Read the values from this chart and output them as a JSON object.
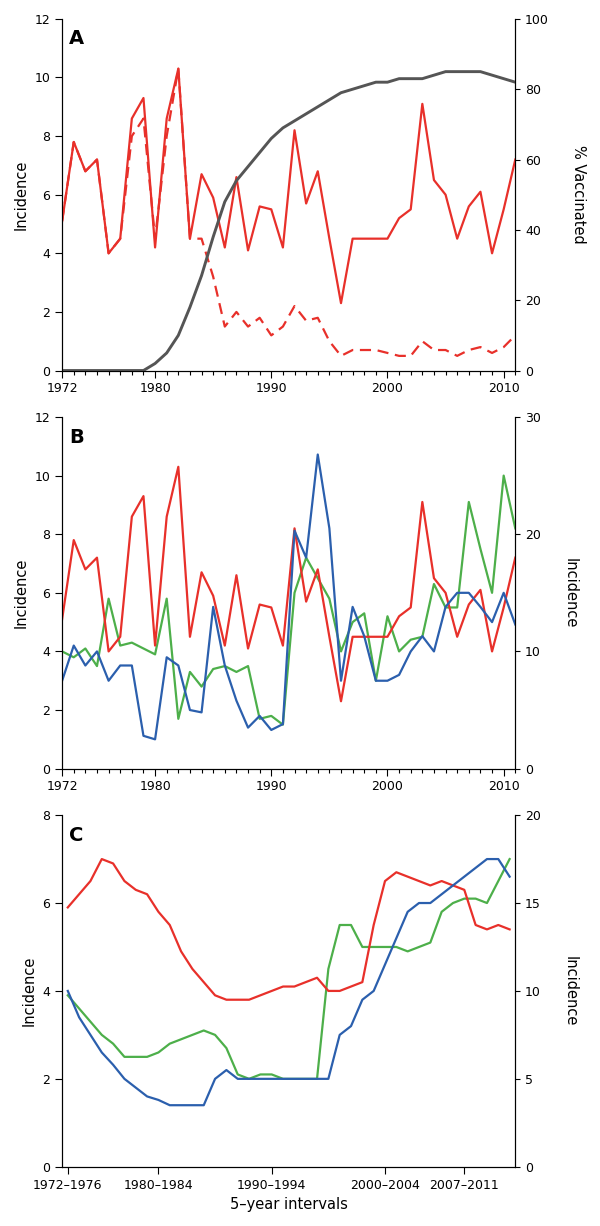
{
  "panel_A": {
    "years": [
      1972,
      1973,
      1974,
      1975,
      1976,
      1977,
      1978,
      1979,
      1980,
      1981,
      1982,
      1983,
      1984,
      1985,
      1986,
      1987,
      1988,
      1989,
      1990,
      1991,
      1992,
      1993,
      1994,
      1995,
      1996,
      1997,
      1998,
      1999,
      2000,
      2001,
      2002,
      2003,
      2004,
      2005,
      2006,
      2007,
      2008,
      2009,
      2010,
      2011
    ],
    "austria_total_solid": [
      5.1,
      7.8,
      6.8,
      7.2,
      4.0,
      4.5,
      8.6,
      9.3,
      4.2,
      8.6,
      10.3,
      4.5,
      6.7,
      5.9,
      4.2,
      6.6,
      4.1,
      5.6,
      5.5,
      4.2,
      8.2,
      5.7,
      6.8,
      4.5,
      2.3,
      4.5,
      4.5,
      4.5,
      4.5,
      5.2,
      5.5,
      9.1,
      6.5,
      6.0,
      4.5,
      5.6,
      6.1,
      4.0,
      5.5,
      7.2
    ],
    "austria_nonvax_dashed": [
      5.1,
      7.8,
      6.8,
      7.2,
      4.0,
      4.5,
      8.0,
      8.6,
      4.5,
      8.0,
      10.3,
      4.5,
      4.5,
      3.2,
      1.5,
      2.0,
      1.5,
      1.8,
      1.2,
      1.5,
      2.2,
      1.7,
      1.8,
      1.0,
      0.5,
      0.7,
      0.7,
      0.7,
      0.6,
      0.5,
      0.5,
      1.0,
      0.7,
      0.7,
      0.5,
      0.7,
      0.8,
      0.6,
      0.8,
      1.2
    ],
    "vaccination": [
      0,
      0,
      0,
      0,
      0,
      0,
      0,
      0,
      2,
      5,
      10,
      18,
      27,
      38,
      48,
      54,
      58,
      62,
      66,
      69,
      71,
      73,
      75,
      77,
      79,
      80,
      81,
      82,
      82,
      83,
      83,
      83,
      84,
      85,
      85,
      85,
      85,
      84,
      83,
      82
    ],
    "ylim_left": [
      0,
      12
    ],
    "ylim_right": [
      0,
      100
    ],
    "yticks_left": [
      0,
      2,
      4,
      6,
      8,
      10,
      12
    ],
    "yticks_right": [
      0,
      20,
      40,
      60,
      80,
      100
    ]
  },
  "panel_B": {
    "years": [
      1972,
      1973,
      1974,
      1975,
      1976,
      1977,
      1978,
      1979,
      1980,
      1981,
      1982,
      1983,
      1984,
      1985,
      1986,
      1987,
      1988,
      1989,
      1990,
      1991,
      1992,
      1993,
      1994,
      1995,
      1996,
      1997,
      1998,
      1999,
      2000,
      2001,
      2002,
      2003,
      2004,
      2005,
      2006,
      2007,
      2008,
      2009,
      2010,
      2011
    ],
    "austria": [
      5.1,
      7.8,
      6.8,
      7.2,
      4.0,
      4.5,
      8.6,
      9.3,
      4.2,
      8.6,
      10.3,
      4.5,
      6.7,
      5.9,
      4.2,
      6.6,
      4.1,
      5.6,
      5.5,
      4.2,
      8.2,
      5.7,
      6.8,
      4.5,
      2.3,
      4.5,
      4.5,
      4.5,
      4.5,
      5.2,
      5.5,
      9.1,
      6.5,
      6.0,
      4.5,
      5.6,
      6.1,
      4.0,
      5.5,
      7.2
    ],
    "czech": [
      4.0,
      3.8,
      4.1,
      3.5,
      5.8,
      4.2,
      4.3,
      4.1,
      3.9,
      5.8,
      1.7,
      3.3,
      2.8,
      3.4,
      3.5,
      3.3,
      3.5,
      1.7,
      1.8,
      1.5,
      6.0,
      7.2,
      6.5,
      5.8,
      4.0,
      5.0,
      5.3,
      3.0,
      5.2,
      4.0,
      4.4,
      4.5,
      6.3,
      5.5,
      5.5,
      9.1,
      7.5,
      6.0,
      10.0,
      8.2
    ],
    "slovenia_right": [
      7.5,
      10.5,
      8.8,
      10.0,
      7.5,
      8.8,
      8.8,
      2.8,
      2.5,
      9.5,
      8.8,
      5.0,
      4.8,
      13.8,
      8.8,
      5.8,
      3.5,
      4.5,
      3.3,
      3.8,
      20.3,
      18.0,
      26.8,
      20.5,
      7.5,
      13.8,
      11.3,
      7.5,
      7.5,
      8.0,
      10.0,
      11.3,
      10.0,
      13.8,
      15.0,
      15.0,
      13.8,
      12.5,
      15.0,
      12.3
    ],
    "ylim_left": [
      0,
      12
    ],
    "ylim_right": [
      0,
      30
    ],
    "yticks_left": [
      0,
      2,
      4,
      6,
      8,
      10,
      12
    ],
    "yticks_right": [
      0,
      10,
      20,
      30
    ]
  },
  "panel_C": {
    "x_positions": [
      0,
      1,
      2,
      3,
      4,
      5,
      6,
      7,
      8,
      9,
      10,
      11,
      12,
      13,
      14,
      15,
      16,
      17,
      18,
      19,
      20,
      21,
      22,
      23,
      24,
      25,
      26,
      27,
      28,
      29,
      30,
      31,
      32,
      33,
      34,
      35,
      36,
      37,
      38,
      39
    ],
    "years_start": [
      1972,
      1973,
      1974,
      1975,
      1976,
      1977,
      1978,
      1979,
      1980,
      1981,
      1982,
      1983,
      1984,
      1985,
      1986,
      1987,
      1988,
      1989,
      1990,
      1991,
      1992,
      1993,
      1994,
      1995,
      1996,
      1997,
      1998,
      1999,
      2000,
      2001,
      2002,
      2003,
      2004,
      2005,
      2006,
      2007,
      2008,
      2009,
      2010,
      2011
    ],
    "austria_5yr": [
      5.9,
      6.2,
      6.5,
      7.0,
      6.9,
      6.5,
      6.3,
      6.2,
      5.8,
      5.5,
      4.9,
      4.5,
      4.2,
      3.9,
      3.8,
      3.8,
      3.8,
      3.9,
      4.0,
      4.1,
      4.1,
      4.2,
      4.3,
      4.0,
      4.0,
      4.1,
      4.2,
      5.5,
      6.5,
      6.7,
      6.6,
      6.5,
      6.4,
      6.5,
      6.4,
      6.3,
      5.5,
      5.4,
      5.5,
      5.4
    ],
    "czech_5yr": [
      3.9,
      3.6,
      3.3,
      3.0,
      2.8,
      2.5,
      2.5,
      2.5,
      2.6,
      2.8,
      2.9,
      3.0,
      3.1,
      3.0,
      2.7,
      2.1,
      2.0,
      2.1,
      2.1,
      2.0,
      2.0,
      2.0,
      2.0,
      4.5,
      5.5,
      5.5,
      5.0,
      5.0,
      5.0,
      5.0,
      4.9,
      5.0,
      5.1,
      5.8,
      6.0,
      6.1,
      6.1,
      6.0,
      6.5,
      7.0
    ],
    "slovenia_5yr_right": [
      10.0,
      8.5,
      7.5,
      6.5,
      5.8,
      5.0,
      4.5,
      4.0,
      3.8,
      3.5,
      3.5,
      3.5,
      3.5,
      5.0,
      5.5,
      5.0,
      5.0,
      5.0,
      5.0,
      5.0,
      5.0,
      5.0,
      5.0,
      5.0,
      7.5,
      8.0,
      9.5,
      10.0,
      11.5,
      13.0,
      14.5,
      15.0,
      15.0,
      15.5,
      16.0,
      16.5,
      17.0,
      17.5,
      17.5,
      16.5
    ],
    "tick_positions": [
      0,
      8,
      18,
      28,
      35
    ],
    "tick_labels": [
      "1972–1976",
      "1980–1984",
      "1990–1994",
      "2000–2004",
      "2007–2011"
    ],
    "ylim_left": [
      0,
      8
    ],
    "ylim_right": [
      0,
      20
    ],
    "yticks_left": [
      0,
      2,
      4,
      6,
      8
    ],
    "yticks_right": [
      0,
      5,
      10,
      15,
      20
    ]
  },
  "colors": {
    "red": "#e8302a",
    "green": "#4daf4a",
    "blue": "#2b5fad",
    "gray": "#555555"
  },
  "xlabel_C": "5–year intervals"
}
